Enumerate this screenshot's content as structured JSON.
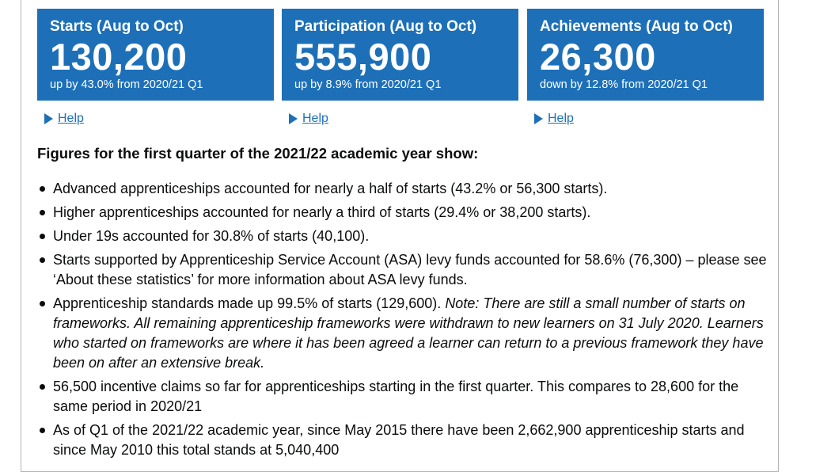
{
  "tiles": [
    {
      "title": "Starts (Aug to Oct)",
      "value": "130,200",
      "change": "up by 43.0% from 2020/21 Q1",
      "help": "Help"
    },
    {
      "title": "Participation (Aug to Oct)",
      "value": "555,900",
      "change": "up by 8.9% from 2020/21 Q1",
      "help": "Help"
    },
    {
      "title": "Achievements (Aug to Oct)",
      "value": "26,300",
      "change": "down by 12.8% from 2020/21 Q1",
      "help": "Help"
    }
  ],
  "heading": "Figures for the first quarter of the 2021/22 academic year show:",
  "bullets": [
    "Advanced apprenticeships accounted for nearly a half of starts (43.2% or 56,300 starts).",
    "Higher apprenticeships accounted for nearly a third of starts (29.4% or 38,200 starts).",
    "Under 19s accounted for 30.8% of starts (40,100).",
    "Starts supported by Apprenticeship Service Account (ASA) levy funds accounted for 58.6% (76,300) – please see ‘About these statistics’ for more information about ASA levy funds.",
    "Apprenticeship standards made up 99.5% of starts (129,600).",
    "56,500 incentive claims so far for apprenticeships starting in the first quarter. This compares to 28,600 for the same period in 2020/21",
    "As of Q1 of the 2021/22 academic year, since May 2015 there have been 2,662,900 apprenticeship starts and since May 2010 this total stands at 5,040,400"
  ],
  "note": "Note: There are still a small number of starts on frameworks. All remaining apprenticeship frameworks were withdrawn to new learners on 31 July 2020. Learners who started on frameworks are where it has been agreed a learner can return to a previous framework they have been on after an extensive break.",
  "colors": {
    "tile_bg": "#1d70b8",
    "link": "#1d70b8",
    "text": "#0b0c0c"
  }
}
